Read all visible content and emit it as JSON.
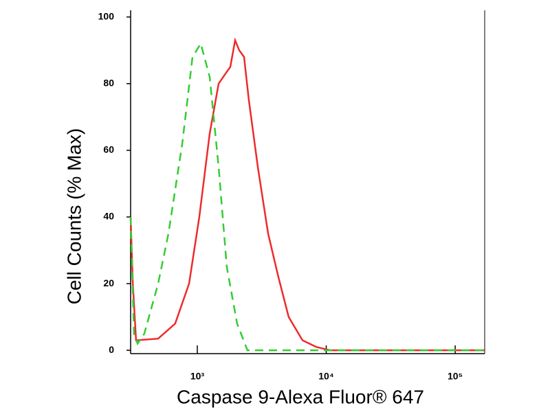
{
  "chart_data": {
    "type": "line",
    "x_label": "Caspase 9-Alexa Fluor® 647",
    "y_label": "Cell Counts (% Max)",
    "x_scale": "log",
    "xlim": [
      304,
      169400
    ],
    "ylim": [
      -1,
      102
    ],
    "xticks": [
      {
        "value": 1000,
        "label": "10³"
      },
      {
        "value": 10000,
        "label": "10⁴"
      },
      {
        "value": 100000,
        "label": "10⁵"
      }
    ],
    "yticks": [
      0,
      20,
      40,
      60,
      80,
      100
    ],
    "series": [
      {
        "color": "#ee2a2a",
        "dash": false,
        "x": [
          304,
          316,
          335,
          497,
          674,
          863,
          1037,
          1247,
          1463,
          1655,
          1803,
          1964,
          2115,
          2305,
          2512,
          2947,
          3541,
          4253,
          5113,
          6546,
          8375,
          10700,
          169400
        ],
        "y": [
          40,
          20,
          3,
          3.5,
          8,
          20,
          40,
          65,
          80,
          83,
          85,
          93,
          90,
          88,
          75,
          55,
          35,
          22,
          10,
          3,
          1,
          0,
          0
        ]
      },
      {
        "color": "#33cc33",
        "dash": true,
        "x": [
          304,
          323,
          344,
          388,
          497,
          597,
          764,
          918,
          1063,
          1247,
          1463,
          1694,
          2036,
          2448,
          4009,
          13680,
          169400
        ],
        "y": [
          40,
          5,
          2,
          5,
          20,
          35,
          62,
          88,
          92,
          82,
          55,
          25,
          8,
          0,
          0,
          0,
          0
        ]
      }
    ]
  }
}
